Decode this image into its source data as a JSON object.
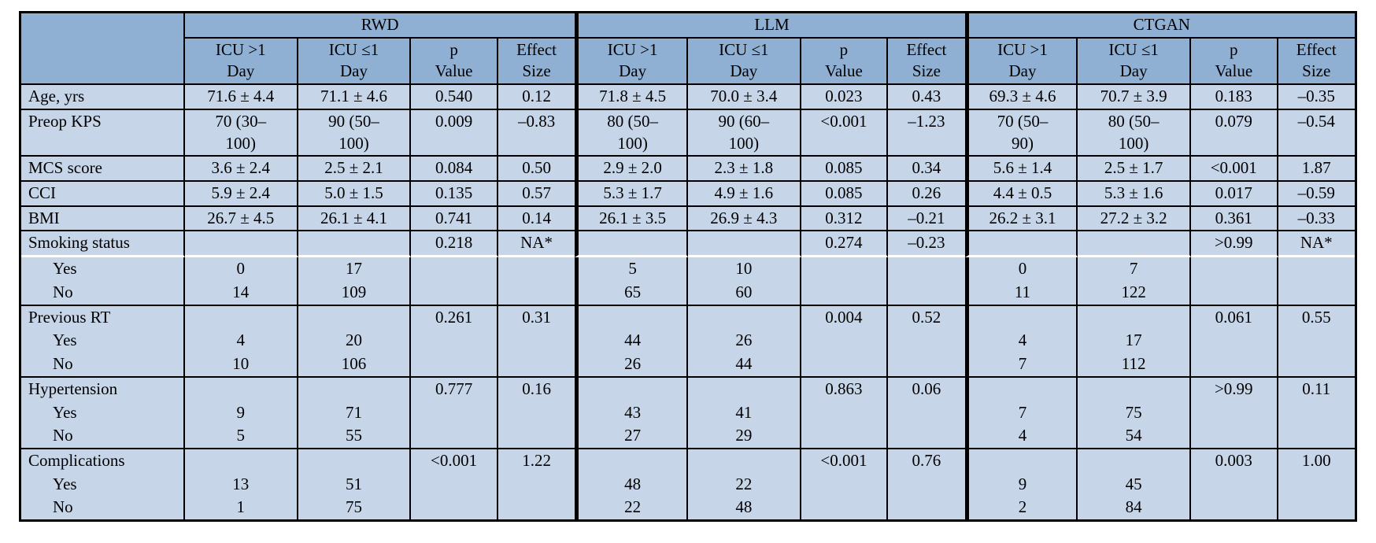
{
  "palette": {
    "header_bg": "#8fafd3",
    "body_bg": "#c6d5e8",
    "border": "#000000",
    "divider": "#ffffff"
  },
  "table": {
    "groups": [
      "RWD",
      "LLM",
      "CTGAN"
    ],
    "subheaders": [
      "ICU >1\nDay",
      "ICU ≤1\nDay",
      "p\nValue",
      "Effect\nSize"
    ],
    "rows": [
      {
        "type": "simple",
        "label": "Age, yrs",
        "groups": [
          [
            "71.6 ± 4.4",
            "71.1 ± 4.6",
            "0.540",
            "0.12"
          ],
          [
            "71.8 ± 4.5",
            "70.0 ± 3.4",
            "0.023",
            "0.43"
          ],
          [
            "69.3 ± 4.6",
            "70.7 ± 3.9",
            "0.183",
            "–0.35"
          ]
        ]
      },
      {
        "type": "simple",
        "label": "Preop KPS",
        "groups": [
          [
            "70 (30–\n100)",
            "90 (50–\n100)",
            "0.009",
            "–0.83"
          ],
          [
            "80 (50–\n100)",
            "90 (60–\n100)",
            "<0.001",
            "–1.23"
          ],
          [
            "70 (50–\n90)",
            "80 (50–\n100)",
            "0.079",
            "–0.54"
          ]
        ]
      },
      {
        "type": "simple",
        "label": "MCS score",
        "groups": [
          [
            "3.6 ± 2.4",
            "2.5 ± 2.1",
            "0.084",
            "0.50"
          ],
          [
            "2.9 ± 2.0",
            "2.3 ± 1.8",
            "0.085",
            "0.34"
          ],
          [
            "5.6 ± 1.4",
            "2.5 ± 1.7",
            "<0.001",
            "1.87"
          ]
        ]
      },
      {
        "type": "simple",
        "label": "CCI",
        "groups": [
          [
            "5.9 ± 2.4",
            "5.0 ± 1.5",
            "0.135",
            "0.57"
          ],
          [
            "5.3 ± 1.7",
            "4.9 ± 1.6",
            "0.085",
            "0.26"
          ],
          [
            "4.4 ± 0.5",
            "5.3 ± 1.6",
            "0.017",
            "–0.59"
          ]
        ]
      },
      {
        "type": "simple",
        "label": "BMI",
        "groups": [
          [
            "26.7 ± 4.5",
            "26.1 ± 4.1",
            "0.741",
            "0.14"
          ],
          [
            "26.1 ± 3.5",
            "26.9 ± 4.3",
            "0.312",
            "–0.21"
          ],
          [
            "26.2 ± 3.1",
            "27.2 ± 3.2",
            "0.361",
            "–0.33"
          ]
        ]
      },
      {
        "type": "categorical",
        "label": "Smoking status",
        "white_divider": true,
        "stats": [
          [
            "0.218",
            "NA*"
          ],
          [
            "0.274",
            "–0.23"
          ],
          [
            ">0.99",
            "NA*"
          ]
        ],
        "sub": [
          {
            "label": "Yes",
            "values": [
              [
                "0",
                "17"
              ],
              [
                "5",
                "10"
              ],
              [
                "0",
                "7"
              ]
            ]
          },
          {
            "label": "No",
            "values": [
              [
                "14",
                "109"
              ],
              [
                "65",
                "60"
              ],
              [
                "11",
                "122"
              ]
            ]
          }
        ]
      },
      {
        "type": "categorical",
        "label": "Previous RT",
        "white_divider": false,
        "stats": [
          [
            "0.261",
            "0.31"
          ],
          [
            "0.004",
            "0.52"
          ],
          [
            "0.061",
            "0.55"
          ]
        ],
        "sub": [
          {
            "label": "Yes",
            "values": [
              [
                "4",
                "20"
              ],
              [
                "44",
                "26"
              ],
              [
                "4",
                "17"
              ]
            ]
          },
          {
            "label": "No",
            "values": [
              [
                "10",
                "106"
              ],
              [
                "26",
                "44"
              ],
              [
                "7",
                "112"
              ]
            ]
          }
        ]
      },
      {
        "type": "categorical",
        "label": "Hypertension",
        "white_divider": false,
        "stats": [
          [
            "0.777",
            "0.16"
          ],
          [
            "0.863",
            "0.06"
          ],
          [
            ">0.99",
            "0.11"
          ]
        ],
        "sub": [
          {
            "label": "Yes",
            "values": [
              [
                "9",
                "71"
              ],
              [
                "43",
                "41"
              ],
              [
                "7",
                "75"
              ]
            ]
          },
          {
            "label": "No",
            "values": [
              [
                "5",
                "55"
              ],
              [
                "27",
                "29"
              ],
              [
                "4",
                "54"
              ]
            ]
          }
        ]
      },
      {
        "type": "categorical",
        "label": "Complications",
        "white_divider": false,
        "stats": [
          [
            "<0.001",
            "1.22"
          ],
          [
            "<0.001",
            "0.76"
          ],
          [
            "0.003",
            "1.00"
          ]
        ],
        "sub": [
          {
            "label": "Yes",
            "values": [
              [
                "13",
                "51"
              ],
              [
                "48",
                "22"
              ],
              [
                "9",
                "45"
              ]
            ]
          },
          {
            "label": "No",
            "values": [
              [
                "1",
                "75"
              ],
              [
                "22",
                "48"
              ],
              [
                "2",
                "84"
              ]
            ]
          }
        ]
      }
    ]
  }
}
